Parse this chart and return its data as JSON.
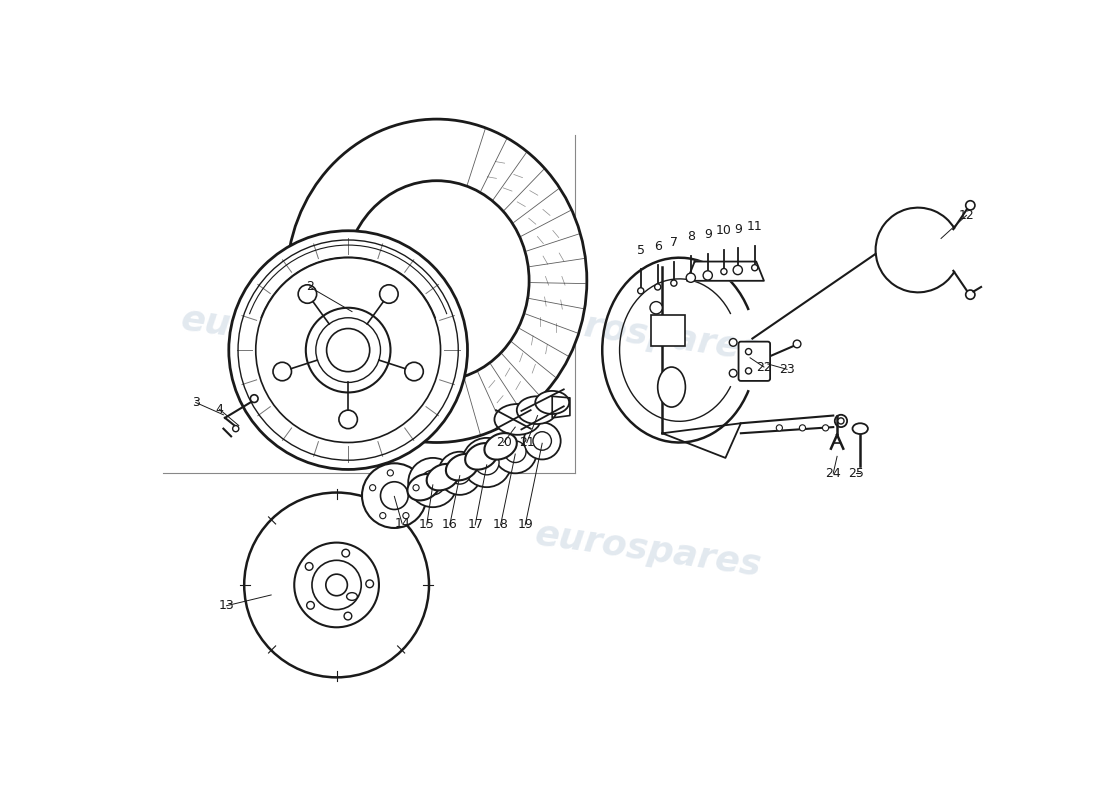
{
  "background_color": "#ffffff",
  "watermark_text": "eurospares",
  "watermark_color": "#b8c8d8",
  "watermark_alpha": 0.4,
  "line_color": "#1a1a1a",
  "line_color2": "#000000"
}
